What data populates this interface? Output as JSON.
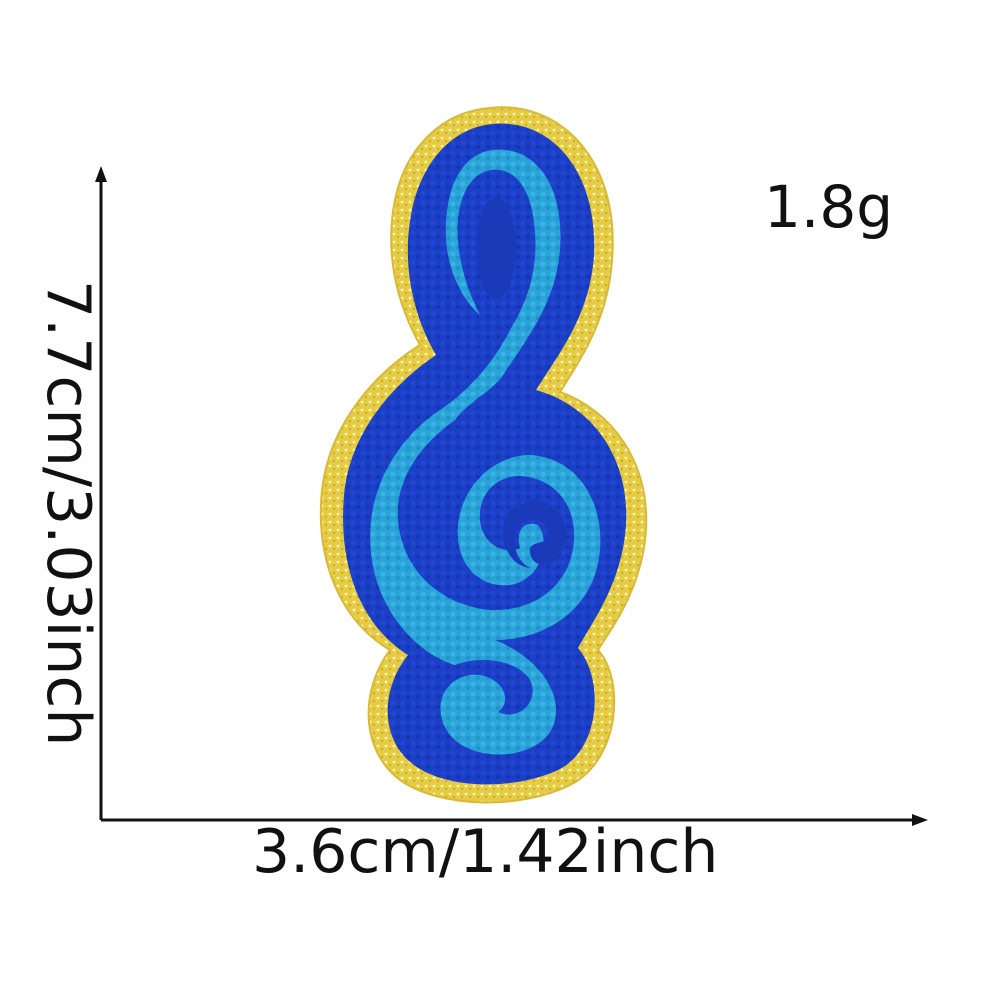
{
  "product": {
    "weight": "1.8g",
    "width_dimension": "3.6cm/1.42inch",
    "height_dimension": "7.7cm/3.03inch",
    "motif": "treble-clef-chenille-patch"
  },
  "colors": {
    "border_gold": "#e8cf4a",
    "outer_blue": "#1a3fc4",
    "inner_light_blue": "#2aa6d8",
    "axis": "#111111",
    "background": "#ffffff"
  }
}
